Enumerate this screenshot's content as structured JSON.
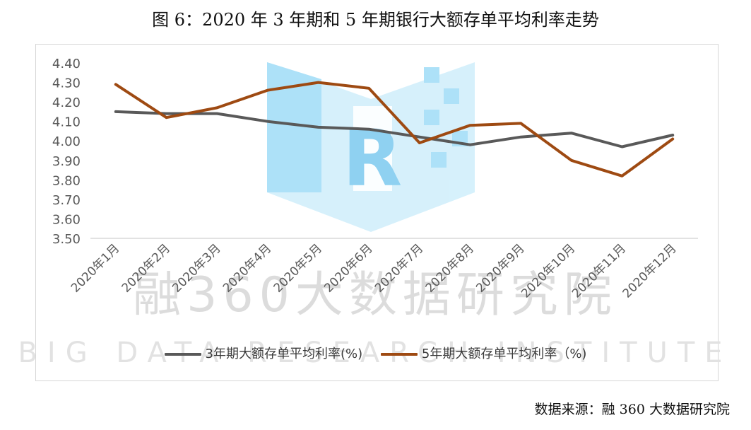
{
  "title": "图 6：2020 年 3 年期和 5 年期银行大额存单平均利率走势",
  "source": "数据来源：融 360 大数据研究院",
  "watermark": {
    "cn": "融360大数据研究院",
    "en": "BIG DATA RESEARCH INSTITUTE",
    "logo_letter": "R"
  },
  "colors": {
    "series_3y": "#595959",
    "series_5y": "#9e4a12",
    "axis": "#d9d9d9",
    "tick_text": "#595959",
    "watermark": "#dcdcdc",
    "logo": "#8fd3f4"
  },
  "chart_data": {
    "type": "line",
    "categories": [
      "2020年1月",
      "2020年2月",
      "2020年3月",
      "2020年4月",
      "2020年5月",
      "2020年6月",
      "2020年7月",
      "2020年8月",
      "2020年9月",
      "2020年10月",
      "2020年11月",
      "2020年12月"
    ],
    "series": [
      {
        "name": "3年期大额存单平均利率(%)",
        "color": "#595959",
        "values": [
          4.15,
          4.14,
          4.14,
          4.1,
          4.07,
          4.06,
          4.02,
          3.98,
          4.02,
          4.04,
          3.97,
          4.03
        ]
      },
      {
        "name": "5年期大额存单平均利率（%)",
        "color": "#9e4a12",
        "values": [
          4.29,
          4.12,
          4.17,
          4.26,
          4.3,
          4.27,
          3.99,
          4.08,
          4.09,
          3.9,
          3.82,
          4.01
        ]
      }
    ],
    "yticks": [
      "4.40",
      "4.30",
      "4.20",
      "4.10",
      "4.00",
      "3.90",
      "3.80",
      "3.70",
      "3.60",
      "3.50"
    ],
    "ylim": [
      3.5,
      4.4
    ],
    "grid": false,
    "legend_position": "bottom"
  }
}
